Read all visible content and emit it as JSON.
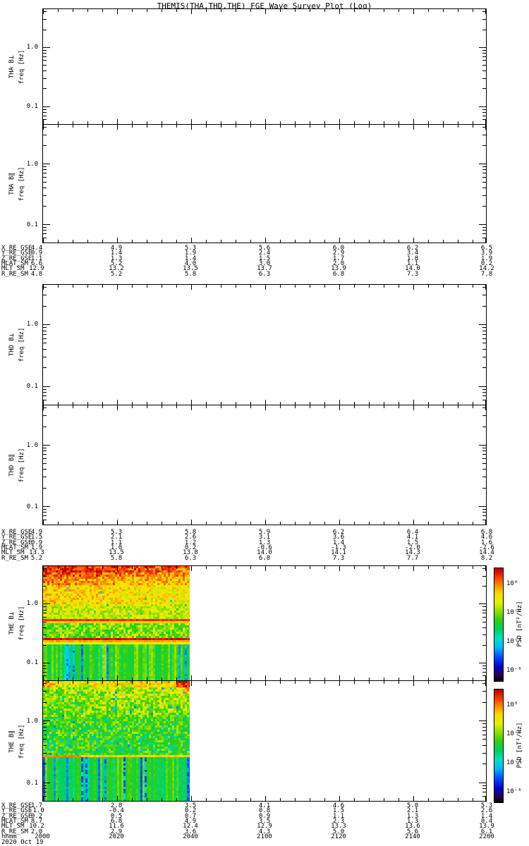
{
  "title": "THEMIS(THA,THD,THE) FGE Wave Survey Plot (Log)",
  "date_label": "2020 Oct 19",
  "time_axis": {
    "name": "hhmm",
    "ticks": [
      "2000",
      "2020",
      "2040",
      "2100",
      "2120",
      "2140",
      "2200"
    ]
  },
  "panels": [
    {
      "id": "tha-bperp",
      "label": "THA B⊥",
      "sublabel": "freq [Hz]",
      "yticks": [
        "1.0",
        "0.1"
      ],
      "has_data": false
    },
    {
      "id": "tha-bpar",
      "label": "THA B∥",
      "sublabel": "freq [Hz]",
      "yticks": [
        "1.0",
        "0.1"
      ],
      "has_data": false
    },
    {
      "id": "thd-bperp",
      "label": "THD B⊥",
      "sublabel": "freq [Hz]",
      "yticks": [
        "1.0",
        "0.1"
      ],
      "has_data": false
    },
    {
      "id": "thd-bpar",
      "label": "THD B∥",
      "sublabel": "freq [Hz]",
      "yticks": [
        "1.0",
        "0.1"
      ],
      "has_data": false
    },
    {
      "id": "the-bperp",
      "label": "THE B⊥",
      "sublabel": "freq [Hz]",
      "yticks": [
        "1.0",
        "0.1"
      ],
      "has_data": true
    },
    {
      "id": "the-bpar",
      "label": "THE B∥",
      "sublabel": "freq [Hz]",
      "yticks": [
        "1.0",
        "0.1"
      ],
      "has_data": true
    }
  ],
  "colorbar": {
    "label": "PSD [nT²/Hz]",
    "ticks": [
      "10⁰",
      "10⁻²",
      "10⁻⁴",
      "10⁻⁶"
    ]
  },
  "annotation_blocks": [
    {
      "rows": [
        {
          "label": "X_RE_GSE",
          "values": [
            "4.4",
            "4.9",
            "5.3",
            "5.6",
            "6.0",
            "6.2",
            "6.5"
          ]
        },
        {
          "label": "Y_RE_GSE",
          "values": [
            "0.9",
            "1.4",
            "1.9",
            "2.4",
            "2.9",
            "3.4",
            "3.9"
          ]
        },
        {
          "label": "Z_RE_GSE",
          "values": [
            "1.1",
            "1.3",
            "1.4",
            "1.5",
            "1.7",
            "1.8",
            "1.9"
          ]
        },
        {
          "label": "MLAT_SM",
          "values": [
            "6.6",
            "5.2",
            "4.0",
            "3.0",
            "2.0",
            "1.1",
            "0.2"
          ]
        },
        {
          "label": "MLT_SM",
          "values": [
            "12.9",
            "13.2",
            "13.5",
            "13.7",
            "13.9",
            "14.0",
            "14.2"
          ]
        },
        {
          "label": "R_RE_SM",
          "values": [
            "4.8",
            "5.2",
            "5.8",
            "6.3",
            "6.8",
            "7.3",
            "7.8"
          ]
        }
      ]
    },
    {
      "rows": [
        {
          "label": "X_RE_GSE",
          "values": [
            "4.9",
            "5.3",
            "5.8",
            "5.9",
            "6.2",
            "6.4",
            "6.8"
          ]
        },
        {
          "label": "Y_RE_GSE",
          "values": [
            "1.5",
            "2.1",
            "2.6",
            "3.1",
            "3.6",
            "4.1",
            "4.6"
          ]
        },
        {
          "label": "Z_RE_GSE",
          "values": [
            "0.9",
            "1.1",
            "1.2",
            "1.3",
            "1.4",
            "1.5",
            "1.6"
          ]
        },
        {
          "label": "MLAT_SM",
          "values": [
            "1.9",
            "1.0",
            "0.2",
            "-0.6",
            "-1.3",
            "-2.0",
            "-2.6"
          ]
        },
        {
          "label": "MLT_SM",
          "values": [
            "13.3",
            "13.5",
            "13.8",
            "14.0",
            "14.1",
            "14.3",
            "14.4"
          ]
        },
        {
          "label": "R_RE_SM",
          "values": [
            "5.2",
            "5.8",
            "6.3",
            "6.8",
            "7.3",
            "7.7",
            "8.2"
          ]
        }
      ]
    },
    {
      "rows": [
        {
          "label": "X_RE_GSE",
          "values": [
            "1.7",
            "2.8",
            "3.5",
            "4.1",
            "4.6",
            "5.0",
            "5.3"
          ]
        },
        {
          "label": "Y_RE_GSE",
          "values": [
            "-1.0",
            "-0.4",
            "0.2",
            "0.8",
            "1.5",
            "2.1",
            "2.6"
          ]
        },
        {
          "label": "Z_RE_GSE",
          "values": [
            "0.2",
            "0.5",
            "0.7",
            "0.9",
            "1.1",
            "1.3",
            "1.4"
          ]
        },
        {
          "label": "MLAT_SM",
          "values": [
            "8.7",
            "6.8",
            "4.9",
            "3.5",
            "2.3",
            "1.3",
            "0.4"
          ]
        },
        {
          "label": "MLT_SM",
          "values": [
            "10.2",
            "11.6",
            "12.4",
            "12.9",
            "13.3",
            "13.6",
            "13.9"
          ]
        },
        {
          "label": "R_RE_SM",
          "values": [
            "2.0",
            "2.9",
            "3.6",
            "4.3",
            "5.0",
            "5.6",
            "6.1"
          ]
        }
      ]
    }
  ],
  "chart_data": {
    "type": "heatmap",
    "title": "THEMIS(THA,THD,THE) FGE Wave Survey Plot (Log)",
    "x_axis": {
      "label": "hhmm",
      "ticks": [
        "2000",
        "2020",
        "2040",
        "2100",
        "2120",
        "2140",
        "2200"
      ],
      "date": "2020 Oct 19"
    },
    "y_axis": {
      "label": "freq [Hz]",
      "scale": "log",
      "range_hz": [
        0.05,
        4.4
      ],
      "tick_labels": [
        "1.0",
        "0.1"
      ]
    },
    "colorbar": {
      "label": "PSD [nT²/Hz]",
      "tick_labels": [
        "10⁰",
        "10⁻²",
        "10⁻⁴",
        "10⁻⁶"
      ]
    },
    "empty_panels": [
      "THA B⊥",
      "THA B∥",
      "THD B⊥",
      "THD B∥"
    ],
    "spectrograms": [
      {
        "panel": "THE B⊥",
        "data_start": "2000",
        "data_end": "2040",
        "x_frac_end": 0.33,
        "seed": 42,
        "base_rows": [
          [
            0,
            0.1,
            0.84,
            0.1
          ],
          [
            0.1,
            0.16,
            0.78,
            0.1
          ],
          [
            0.16,
            0.34,
            0.73,
            0.09
          ],
          [
            0.34,
            0.47,
            0.67,
            0.09
          ],
          [
            0.47,
            0.63,
            0.6,
            0.12
          ],
          [
            0.63,
            0.68,
            0.58,
            0.08
          ]
        ],
        "bands": [
          [
            0.47,
            0.018,
            0.93
          ],
          [
            0.488,
            0.012,
            0.78
          ],
          [
            0.628,
            0.022,
            0.97
          ],
          [
            0.65,
            0.014,
            0.82
          ],
          [
            0.664,
            0.012,
            0.72
          ]
        ],
        "partial_line": [
          0.325,
          0.012,
          0.13,
          0.45,
          0.92
        ],
        "dot_prob": 0.02,
        "dot_v": 0.38,
        "dot_y0": 0.16,
        "stripes": {
          "y0": 0.68,
          "base": 0.42,
          "col_amp": 0.18,
          "rnd": 0.06,
          "blue_prob": 0.1,
          "blue_drop": 0.2,
          "deep_prob": 0.04,
          "deep_v": 0.22
        },
        "top_left_boost": 0.05
      },
      {
        "panel": "THE B∥",
        "data_start": "2000",
        "data_end": "2040",
        "x_frac_end": 0.33,
        "seed": 7,
        "base_rows": [
          [
            0,
            0.05,
            0.66,
            0.12
          ],
          [
            0.05,
            0.3,
            0.59,
            0.11
          ],
          [
            0.3,
            0.46,
            0.55,
            0.11
          ],
          [
            0.46,
            0.6,
            0.53,
            0.12
          ],
          [
            0.6,
            0.64,
            0.55,
            0.08
          ]
        ],
        "bands": [
          [
            0.452,
            0.012,
            0.74
          ],
          [
            0.612,
            0.02,
            0.78
          ]
        ],
        "band_left_boost": [
          0.612,
          0.02,
          0.25,
          0.86
        ],
        "partial_line": null,
        "dot_prob": 0.03,
        "dot_v": 0.25,
        "dot_y0": 0.05,
        "stripes": {
          "y0": 0.64,
          "base": 0.38,
          "col_amp": 0.2,
          "rnd": 0.05,
          "blue_prob": 0.18,
          "blue_drop": 0.18,
          "deep_prob": 0.06,
          "deep_v": 0.18
        },
        "corner_boost": 0.12
      }
    ]
  }
}
